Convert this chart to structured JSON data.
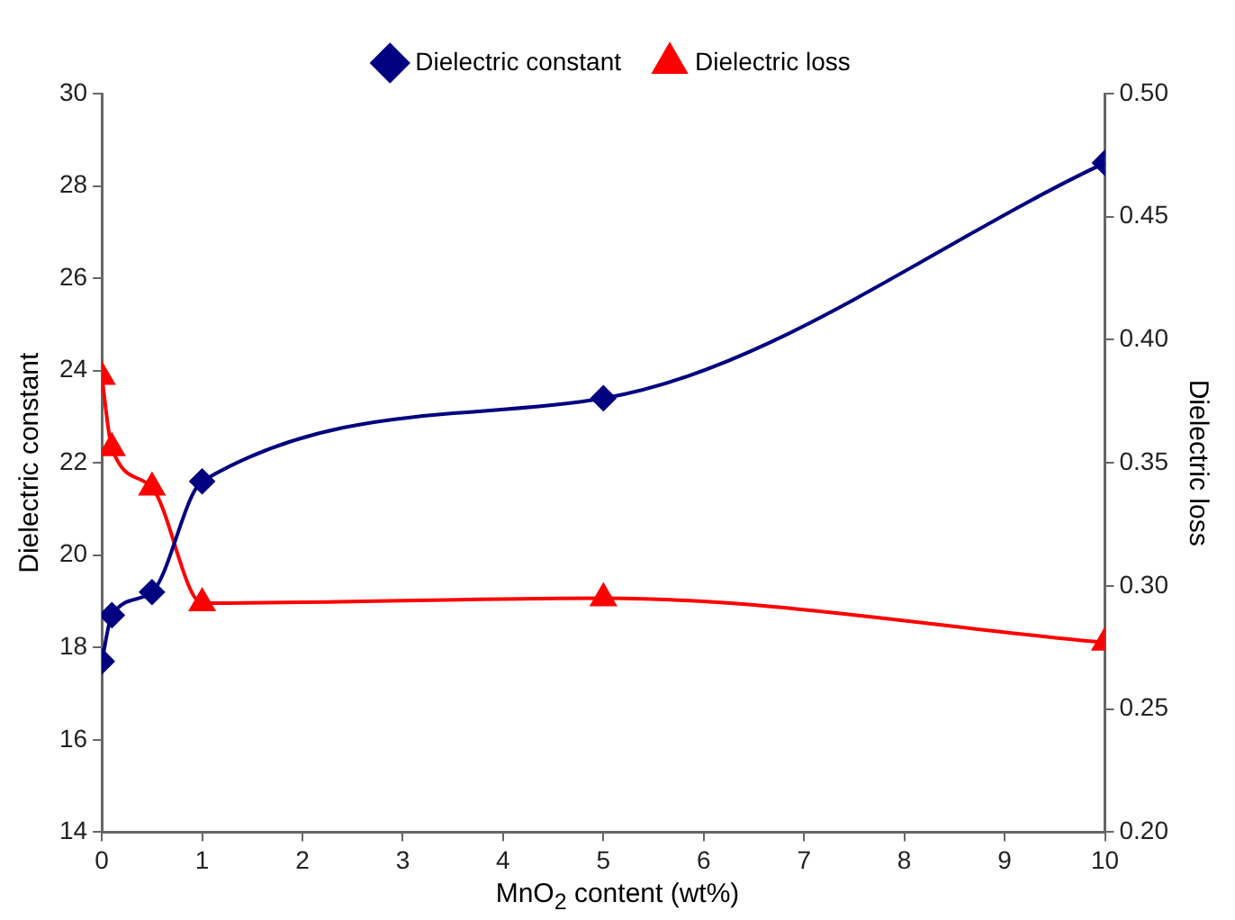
{
  "chart_data": {
    "type": "line",
    "xlabel": "MnO$_{2}$ content (wt%)",
    "ylabel": "Dielectric constant",
    "y2label": "Dielectric loss",
    "x": [
      0,
      0.1,
      0.5,
      1,
      5,
      10
    ],
    "series": [
      {
        "name": "Dielectric constant",
        "color": "#000080",
        "marker": "diamond",
        "values": [
          17.7,
          18.7,
          19.2,
          21.6,
          23.4,
          28.5
        ]
      },
      {
        "name": "Dielectric loss",
        "color": "#ff0000",
        "marker": "triangle",
        "axis": "y2",
        "values": [
          0.385,
          0.356,
          0.34,
          0.293,
          0.295,
          0.277
        ]
      }
    ],
    "xlim": [
      0,
      10
    ],
    "xticks": [
      0,
      1,
      2,
      3,
      4,
      5,
      6,
      7,
      8,
      9,
      10
    ],
    "ylim": [
      14,
      30
    ],
    "yticks": [
      14,
      16,
      18,
      20,
      22,
      24,
      26,
      28,
      30
    ],
    "y2lim": [
      0.2,
      0.5
    ],
    "y2ticks": [
      {
        "value": 0.2,
        "label": "0.20"
      },
      {
        "value": 0.25,
        "label": "0.25"
      },
      {
        "value": 0.3,
        "label": "0.30"
      },
      {
        "value": 0.35,
        "label": "0.35"
      },
      {
        "value": 0.4,
        "label": "0.40"
      },
      {
        "value": 0.45,
        "label": "0.45"
      },
      {
        "value": 0.5,
        "label": "0.50"
      }
    ],
    "grid": false,
    "legend": "top",
    "line_style": "solid"
  }
}
